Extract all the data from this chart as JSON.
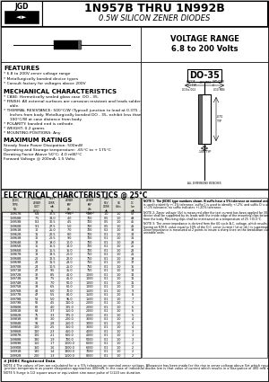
{
  "title": "1N957B THRU 1N992B",
  "subtitle": "0.5W SILICON ZENER DIODES",
  "voltage_range_line1": "VOLTAGE RANGE",
  "voltage_range_line2": "6.8 to 200 Volts",
  "bg_color": "#d0cfc8",
  "white": "#ffffff",
  "features_title": "FEATURES",
  "features": [
    "* 6.8 to 200V zener voltage range",
    "* Metallurgically bonded device types",
    "* Consult factory for voltages above 200V"
  ],
  "mechanical_title": "MECHANICAL CHARACTERISTICS",
  "mechanical": [
    "* CASE: Hermetically sealed glass case  DO - 35.",
    "* FINISH: All external surfaces are corrosion resistant and leads solder",
    "     able.",
    "* THERMAL RESISTANCE: 500°C/W (Typical) junction to lead at 0.375 -",
    "     Inches from body. Metallurgically bonded DO - 35, exhibit less than",
    "     100°C/W at case distance from body.",
    "* POLARITY: banded end is cathode.",
    "* WEIGHT: 0.2 grams",
    "* MOUNTING POSITIONS: Any"
  ],
  "max_ratings_title": "MAXIMUM RATINGS",
  "max_ratings": [
    "Steady State Power Dissipation: 500mW",
    "Operating and Storage temperature: -65°C to + 175°C",
    "Derating Factor Above 50°C: 4.0 mW/°C",
    "Forward Voltage @ 200mA: 1.5 Volts"
  ],
  "elec_title": "ELECTRICAL CHARCTERISTICS @ 25°C",
  "col_headers_line1": [
    "JEDEC",
    "NOMINAL",
    "TEST",
    "MAX ZENER",
    "MAX ZENER",
    "MAX",
    "MAX DC"
  ],
  "col_headers_line2": [
    "TYPE",
    "ZENER",
    "CURRENT",
    "IMPEDANCE",
    "IMPEDANCE",
    "REVERSE",
    "ZENER"
  ],
  "col_headers_line3": [
    "NO.",
    "VOLTAGE",
    "mA",
    "Zzt @ Izt",
    "Zzk @ Izk",
    "CURRENT",
    "CURRENT"
  ],
  "col_headers_line4": [
    "",
    "Vz (V)",
    "Izt",
    "(ohms)",
    "(ohms)",
    "Ir @ VR",
    "mA"
  ],
  "col_headers_line5": [
    "",
    "",
    "",
    "",
    "",
    "uA",
    ""
  ],
  "table_data": [
    [
      "1N957B",
      "6.8",
      "37.5",
      "3.5",
      "700",
      "1.0",
      "1.0",
      "52"
    ],
    [
      "1N958B",
      "7.5",
      "34.0",
      "4.0",
      "700",
      "0.5",
      "1.0",
      "49"
    ],
    [
      "1N959B",
      "8.2",
      "30.5",
      "4.5",
      "700",
      "0.5",
      "1.0",
      "45"
    ],
    [
      "1N960B",
      "9.1",
      "27.5",
      "5.0",
      "700",
      "0.5",
      "1.0",
      "41"
    ],
    [
      "1N961B",
      "10",
      "25.0",
      "7.0",
      "700",
      "0.2",
      "1.0",
      "38"
    ],
    [
      "1N962B",
      "11",
      "22.5",
      "8.0",
      "700",
      "0.1",
      "1.0",
      "34"
    ],
    [
      "1N963B",
      "12",
      "20.5",
      "9.0",
      "700",
      "0.1",
      "1.0",
      "31"
    ],
    [
      "1N964B",
      "13",
      "19.0",
      "10.0",
      "700",
      "0.1",
      "1.0",
      "29"
    ],
    [
      "1N965B",
      "15",
      "16.5",
      "14.0",
      "700",
      "0.1",
      "1.0",
      "25"
    ],
    [
      "1N966B",
      "16",
      "15.5",
      "16.0",
      "700",
      "0.1",
      "1.0",
      "23"
    ],
    [
      "1N967B",
      "18",
      "13.5",
      "20.0",
      "750",
      "0.1",
      "1.0",
      "21"
    ],
    [
      "1N968B",
      "20",
      "12.5",
      "22.0",
      "750",
      "0.1",
      "1.0",
      "19"
    ],
    [
      "1N969B",
      "22",
      "11.5",
      "23.0",
      "750",
      "0.1",
      "1.0",
      "17"
    ],
    [
      "1N970B",
      "24",
      "10.5",
      "25.0",
      "750",
      "0.1",
      "1.0",
      "16"
    ],
    [
      "1N971B",
      "27",
      "9.5",
      "35.0",
      "750",
      "0.1",
      "1.0",
      "14"
    ],
    [
      "1N972B",
      "30",
      "8.5",
      "40.0",
      "1000",
      "0.1",
      "1.0",
      "13"
    ],
    [
      "1N973B",
      "33",
      "7.5",
      "45.0",
      "1000",
      "0.1",
      "1.0",
      "11"
    ],
    [
      "1N974B",
      "36",
      "7.0",
      "50.0",
      "1000",
      "0.1",
      "1.0",
      "11"
    ],
    [
      "1N975B",
      "39",
      "6.5",
      "60.0",
      "1000",
      "0.1",
      "1.0",
      "10"
    ],
    [
      "1N976B",
      "43",
      "6.0",
      "70.0",
      "1500",
      "0.1",
      "1.0",
      "9"
    ],
    [
      "1N977B",
      "47",
      "5.5",
      "80.0",
      "1500",
      "0.1",
      "1.0",
      "8"
    ],
    [
      "1N978B",
      "51",
      "5.0",
      "95.0",
      "1500",
      "0.1",
      "1.0",
      "7"
    ],
    [
      "1N979B",
      "56",
      "4.5",
      "110.0",
      "2000",
      "0.1",
      "1.0",
      "7"
    ],
    [
      "1N980B",
      "62",
      "4.0",
      "125.0",
      "2000",
      "0.1",
      "1.0",
      "6"
    ],
    [
      "1N981B",
      "68",
      "3.7",
      "150.0",
      "2000",
      "0.1",
      "1.0",
      "6"
    ],
    [
      "1N982B",
      "75",
      "3.3",
      "175.0",
      "2000",
      "0.1",
      "1.0",
      "5"
    ],
    [
      "1N983B",
      "82",
      "3.0",
      "200.0",
      "3000",
      "0.1",
      "1.0",
      "4"
    ],
    [
      "1N984B",
      "91",
      "2.8",
      "250.0",
      "3000",
      "0.1",
      "1.0",
      "4"
    ],
    [
      "1N985B",
      "100",
      "2.5",
      "350.0",
      "3000",
      "0.1",
      "1.0",
      "4"
    ],
    [
      "1N986B",
      "110",
      "2.3",
      "450.0",
      "4000",
      "0.1",
      "1.0",
      "3"
    ],
    [
      "1N987B",
      "120",
      "2.1",
      "600.0",
      "4000",
      "0.1",
      "1.0",
      "3"
    ],
    [
      "1N988B",
      "130",
      "1.9",
      "700.0",
      "5000",
      "0.1",
      "1.0",
      "3"
    ],
    [
      "1N989B",
      "150",
      "1.7",
      "1000.0",
      "6000",
      "0.1",
      "1.0",
      "2"
    ],
    [
      "1N990B",
      "160",
      "1.6",
      "1100.0",
      "6000",
      "0.1",
      "1.0",
      "2"
    ],
    [
      "1N991B",
      "180",
      "1.4",
      "1300.0",
      "7000",
      "0.1",
      "1.0",
      "2"
    ],
    [
      "1N992B",
      "200",
      "1.3",
      "1500.0",
      "8000",
      "0.1",
      "1.0",
      "2"
    ]
  ],
  "note1": "NOTE 1: The JEDEC type numbers shown, B suffix have a 5% tolerance on nominal zener voltage. The suffix A is used to identify +/-1% tolerance; suffix C is used to identify +/-2%; and suffix D is used to identify +/-1% tolerance; no suffix indicates +/-20% tolerance.",
  "note2": "NOTE 2: Zener voltage (Vz) is measured after the test current has been applied for 30 ± 5 seconds. The device shall be supported by its leads with the inside edge of the mounting clips between .375\" and .500\" from the body. Mounting clips shall be maintained at a temperature of 25 +0/-5°C.",
  "note3": "NOTE 3: The zener impedance is derived from the 60 cycle A.C. voltage, which results when an A.C. current having an R.M.S. value equal to 10% of the D.C. zener current ( Izt or Izk ) is superimposed on Izt or Izk. Zener impedance is measured at 2 points to insure a sharp knee on the breakdown curve and to eliminate unstable units.",
  "footer1": "# JEDEC Registered Data",
  "footer2": "NOTE 4 The values of Izm are calculated for a ± 5% tolerance on nominal zener voltage. Allowance has been made for the rise in zener voltage above Vzt which results from zener impedance and the increase in junction temperature as power dissipation approaches 400mW. In the case of individual diodes Izm is that value of current which results in a dissipation of 400 mW at 75°C lead temperature at .375\" from body.",
  "footer3": "NOTE 5 Surge is 1/2 square wave or equivalent sine wave pulse of 1/120 sec duration.",
  "do35_label": "DO-35"
}
